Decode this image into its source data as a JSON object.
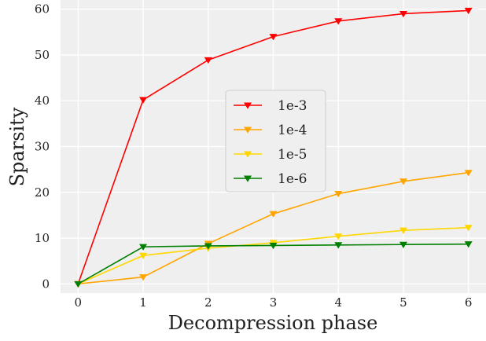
{
  "chart_data": {
    "type": "line",
    "title": "",
    "xlabel": "Decompression phase",
    "ylabel": "Sparsity",
    "x": [
      0,
      1,
      2,
      3,
      4,
      5,
      6
    ],
    "xlim": [
      -0.27,
      6.27
    ],
    "ylim": [
      -2,
      62
    ],
    "xticks": [
      0,
      1,
      2,
      3,
      4,
      5,
      6
    ],
    "yticks": [
      0,
      10,
      20,
      30,
      40,
      50,
      60
    ],
    "grid": true,
    "marker": "triangle-down",
    "legend_position": "center",
    "series": [
      {
        "name": "1e-3",
        "color": "#ff0000",
        "values": [
          0,
          40.2,
          48.9,
          54.0,
          57.4,
          59.0,
          59.7
        ]
      },
      {
        "name": "1e-4",
        "color": "#ffa500",
        "values": [
          0,
          1.5,
          8.8,
          15.3,
          19.7,
          22.4,
          24.3
        ]
      },
      {
        "name": "1e-5",
        "color": "#ffd700",
        "values": [
          0,
          6.2,
          7.8,
          9.0,
          10.4,
          11.7,
          12.3
        ]
      },
      {
        "name": "1e-6",
        "color": "#008000",
        "values": [
          0,
          8.1,
          8.3,
          8.4,
          8.5,
          8.6,
          8.7
        ]
      }
    ]
  }
}
